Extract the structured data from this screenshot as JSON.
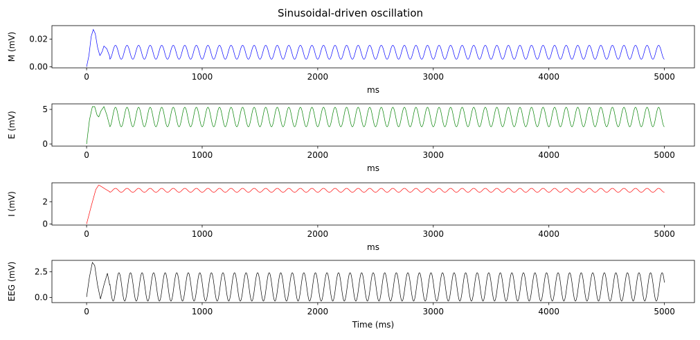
{
  "figure": {
    "title": "Sinusoidal-driven oscillation"
  },
  "chart_data": [
    {
      "type": "line",
      "ylabel": "M (mV)",
      "xlabel": "ms",
      "xlim": [
        -300,
        5260
      ],
      "ylim": [
        -0.0008,
        0.0298
      ],
      "xticks": [
        0,
        1000,
        2000,
        3000,
        4000,
        5000
      ],
      "xtick_labels": [
        "0",
        "1000",
        "2000",
        "3000",
        "4000",
        "5000"
      ],
      "yticks": [
        0.0,
        0.02
      ],
      "ytick_labels": [
        "0.00",
        "0.02"
      ],
      "color": "#0000ff",
      "signal": {
        "t_max": 5000,
        "transient": [
          [
            0,
            0
          ],
          [
            20,
            0.008
          ],
          [
            40,
            0.022
          ],
          [
            58,
            0.027
          ],
          [
            75,
            0.024
          ],
          [
            95,
            0.014
          ],
          [
            115,
            0.008
          ],
          [
            135,
            0.011
          ],
          [
            150,
            0.015
          ],
          [
            175,
            0.013
          ],
          [
            200,
            0.0075
          ]
        ],
        "steady_from": 200,
        "period": 100,
        "phase_peak": 150,
        "peak": 0.0155,
        "trough": 0.0055
      }
    },
    {
      "type": "line",
      "ylabel": "E (mV)",
      "xlabel": "ms",
      "xlim": [
        -300,
        5260
      ],
      "ylim": [
        -0.3,
        5.8
      ],
      "xticks": [
        0,
        1000,
        2000,
        3000,
        4000,
        5000
      ],
      "xtick_labels": [
        "0",
        "1000",
        "2000",
        "3000",
        "4000",
        "5000"
      ],
      "yticks": [
        0,
        5
      ],
      "ytick_labels": [
        "0",
        "5"
      ],
      "color": "#008000",
      "signal": {
        "t_max": 5000,
        "transient": [
          [
            0,
            0
          ],
          [
            25,
            3.5
          ],
          [
            50,
            5.4
          ],
          [
            70,
            5.4
          ],
          [
            90,
            4.2
          ],
          [
            105,
            3.9
          ],
          [
            125,
            4.8
          ],
          [
            150,
            5.4
          ],
          [
            175,
            4.2
          ],
          [
            200,
            2.6
          ]
        ],
        "steady_from": 200,
        "period": 100,
        "phase_peak": 250,
        "peak": 5.3,
        "trough": 2.5
      }
    },
    {
      "type": "line",
      "ylabel": "I (mV)",
      "xlabel": "ms",
      "xlim": [
        -300,
        5260
      ],
      "ylim": [
        -0.1,
        3.7
      ],
      "xticks": [
        0,
        1000,
        2000,
        3000,
        4000,
        5000
      ],
      "xtick_labels": [
        "0",
        "1000",
        "2000",
        "3000",
        "4000",
        "5000"
      ],
      "yticks": [
        0,
        2
      ],
      "ytick_labels": [
        "0",
        "2"
      ],
      "color": "#ff0000",
      "signal": {
        "t_max": 5000,
        "transient": [
          [
            0,
            0
          ],
          [
            40,
            1.6
          ],
          [
            80,
            3.1
          ],
          [
            105,
            3.5
          ],
          [
            130,
            3.35
          ],
          [
            160,
            3.15
          ],
          [
            200,
            2.9
          ]
        ],
        "steady_from": 200,
        "period": 100,
        "phase_peak": 250,
        "peak": 3.2,
        "trough": 2.85
      }
    },
    {
      "type": "line",
      "ylabel": "EEG (mV)",
      "xlabel": "Time (ms)",
      "xlim": [
        -300,
        5260
      ],
      "ylim": [
        -0.5,
        3.6
      ],
      "xticks": [
        0,
        1000,
        2000,
        3000,
        4000,
        5000
      ],
      "xtick_labels": [
        "0",
        "1000",
        "2000",
        "3000",
        "4000",
        "5000"
      ],
      "yticks": [
        0.0,
        2.5
      ],
      "ytick_labels": [
        "0.0",
        "2.5"
      ],
      "color": "#000000",
      "signal": {
        "t_max": 5000,
        "transient": [
          [
            0,
            0.05
          ],
          [
            25,
            2.0
          ],
          [
            50,
            3.4
          ],
          [
            70,
            3.1
          ],
          [
            95,
            1.2
          ],
          [
            120,
            -0.15
          ],
          [
            150,
            1.2
          ],
          [
            180,
            2.35
          ],
          [
            200,
            1.2
          ]
        ],
        "steady_from": 200,
        "period": 100,
        "phase_peak": 180,
        "peak": 2.4,
        "trough": -0.35
      }
    }
  ]
}
